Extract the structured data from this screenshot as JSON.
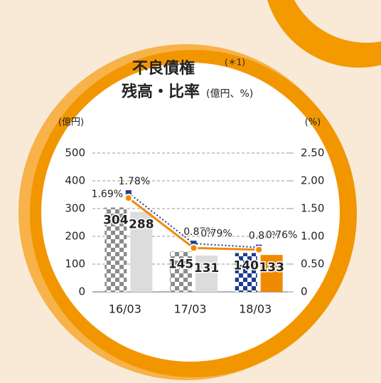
{
  "chart_data": {
    "type": "bar",
    "title": "不良債権",
    "title_note": "(＊1)",
    "subtitle": "残高・比率",
    "subtitle_note": "(億円、%)",
    "y_label": "(億円)",
    "y2_label": "(%)",
    "categories": [
      "16/03",
      "17/03",
      "18/03"
    ],
    "ylim": [
      0,
      500
    ],
    "yticks": [
      0,
      100,
      200,
      300,
      400,
      500
    ],
    "y2lim": [
      0,
      2.5
    ],
    "y2ticks": [
      0,
      {
        "value": 0.5,
        "label": "0.50"
      },
      {
        "value": 1,
        "label": "1.00"
      },
      {
        "value": 1.5,
        "label": "1.50"
      },
      {
        "value": 2,
        "label": "2.00"
      },
      {
        "value": 2.5,
        "label": "2.50"
      }
    ],
    "grid": true,
    "series": [
      {
        "type": "bar",
        "values": [
          304,
          145,
          140
        ],
        "colors": [
          "#8c8c8c",
          "#8c8c8c",
          "#1d3c8f"
        ],
        "pattern": "checkered"
      },
      {
        "type": "bar",
        "values": [
          288,
          131,
          133
        ],
        "colors": [
          "#dcdcdc",
          "#dcdcdc",
          "#f08a00"
        ]
      },
      {
        "type": "line",
        "axis": "y2",
        "values": [
          1.78,
          0.87,
          0.8
        ],
        "value_labels": [
          "1.78%",
          "0.87%",
          "0.80%"
        ],
        "color": "#1d3c8f",
        "dashed": true
      },
      {
        "type": "line",
        "axis": "y2",
        "values": [
          1.69,
          0.79,
          0.76
        ],
        "value_labels": [
          "1.69%",
          "0.79%",
          "0.76%"
        ],
        "color": "#f08a00"
      }
    ]
  }
}
